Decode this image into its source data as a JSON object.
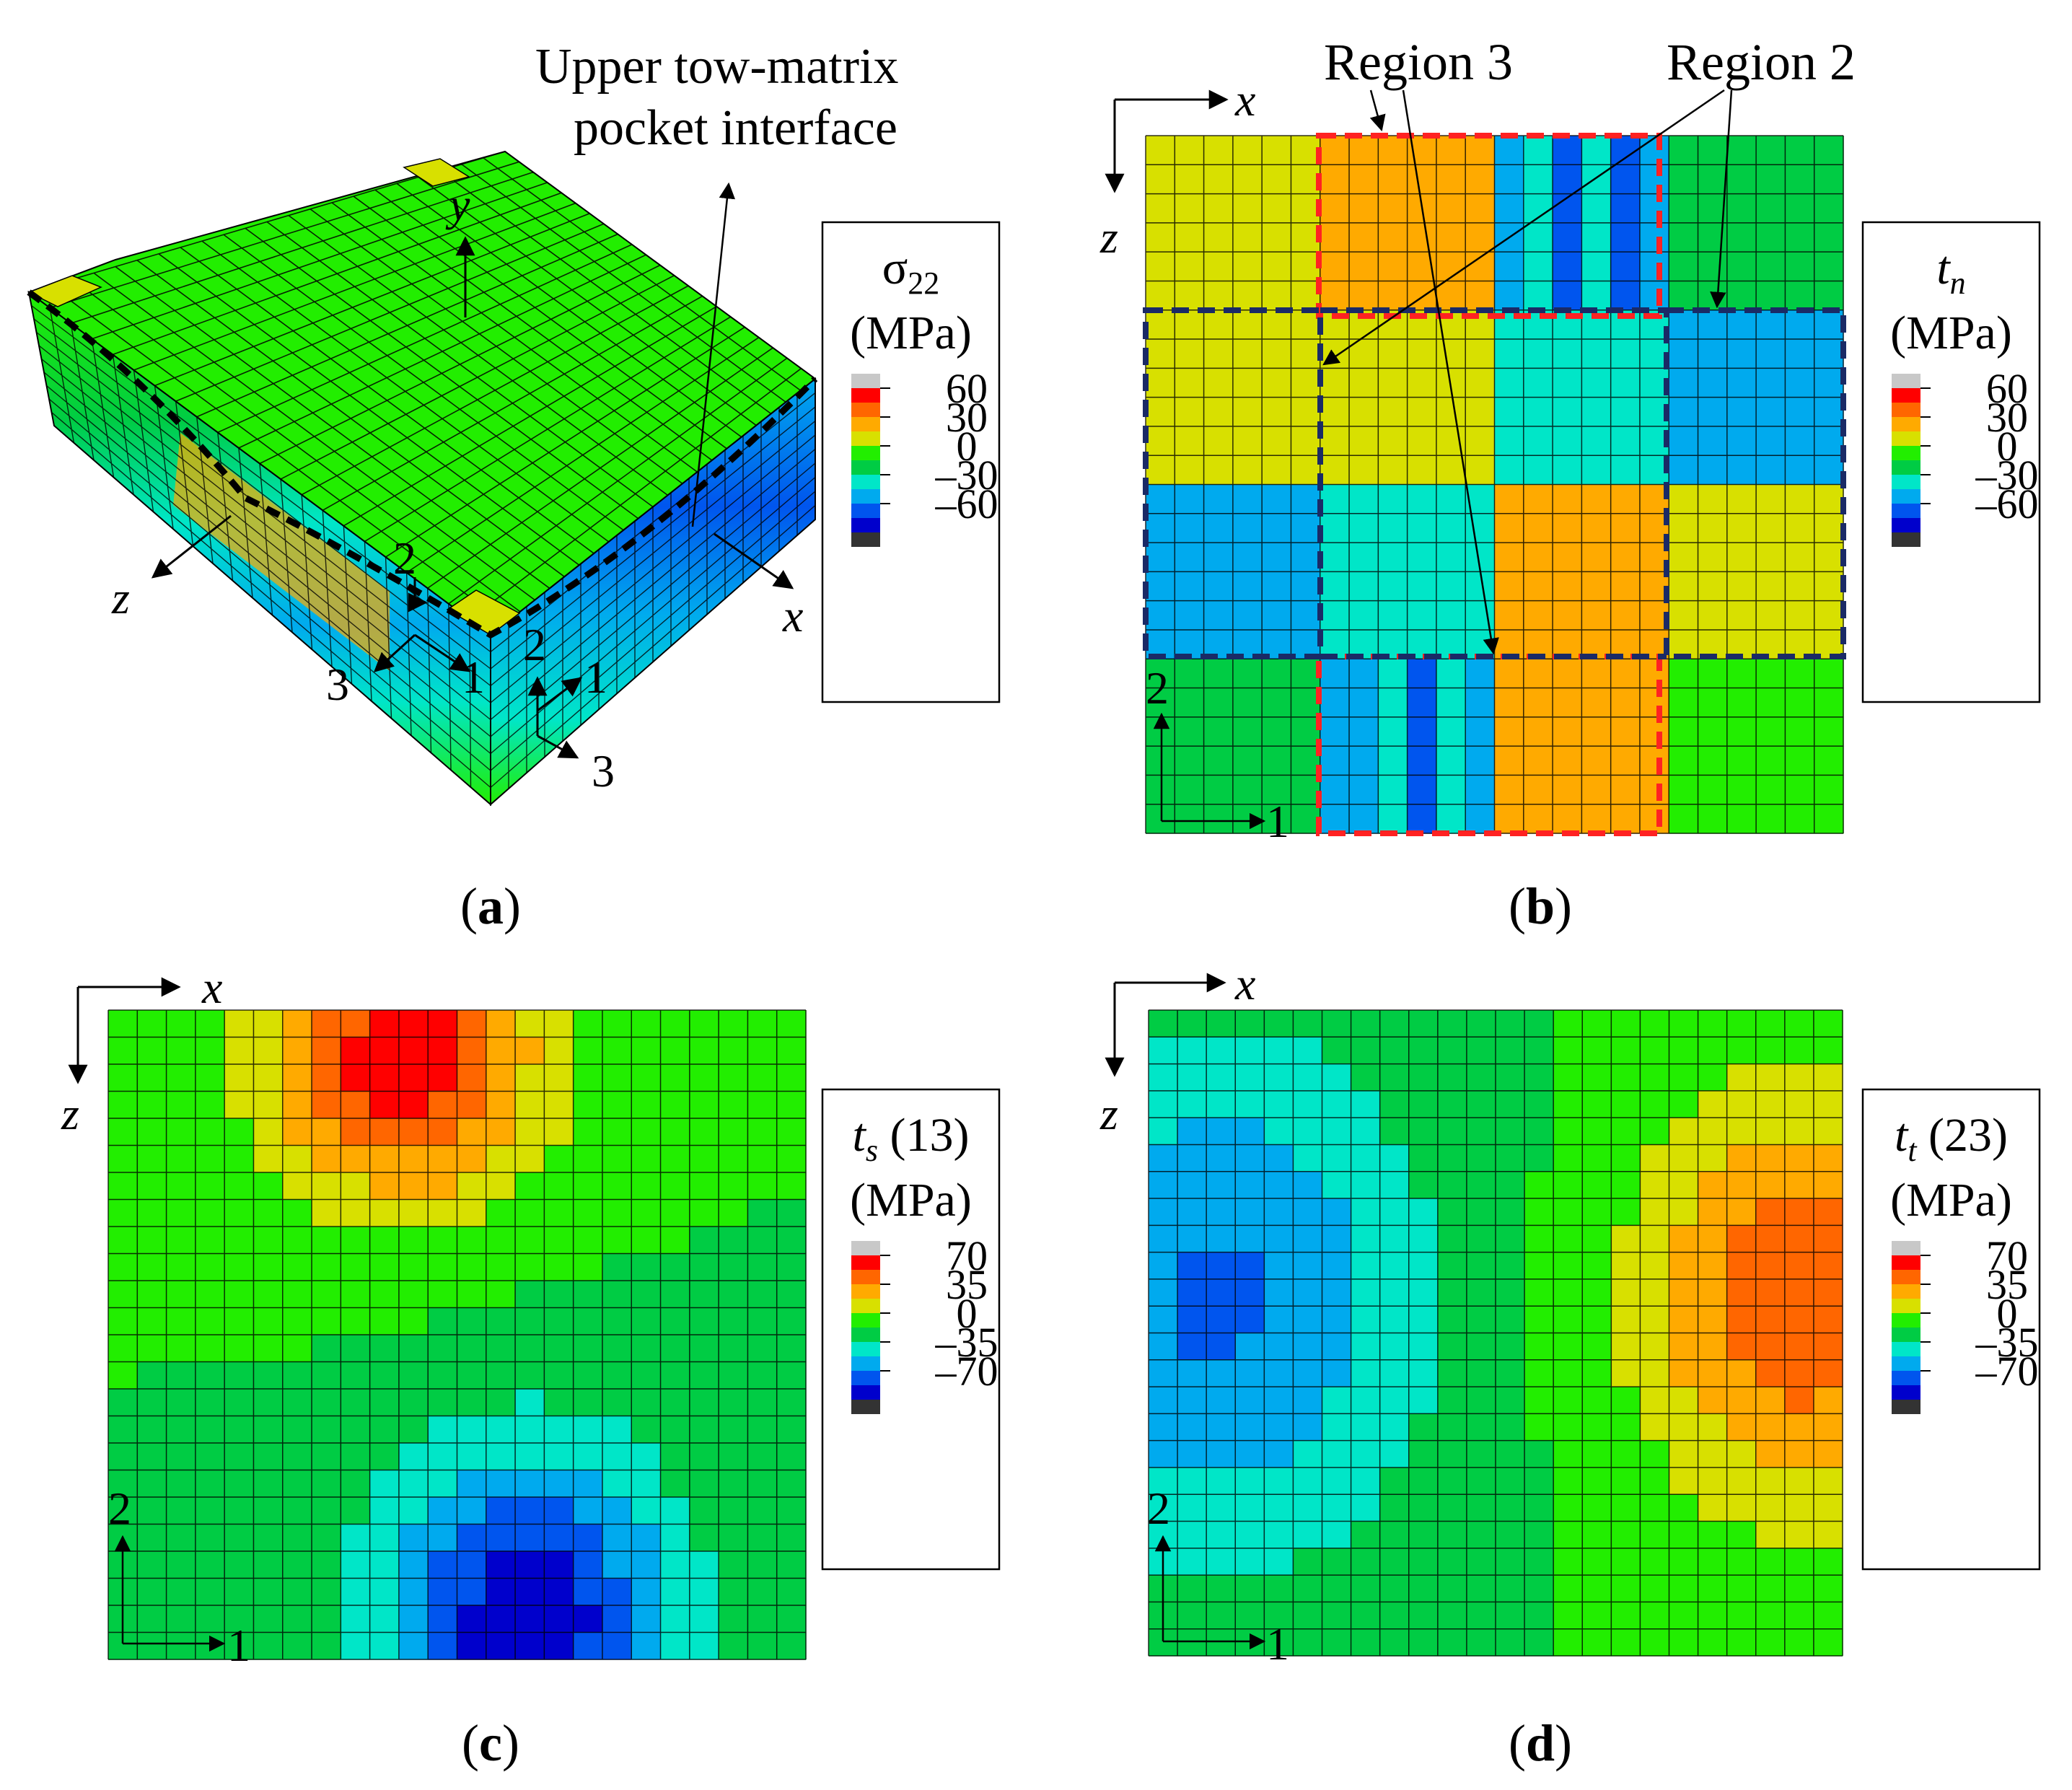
{
  "figure": {
    "panels": [
      {
        "id": "a",
        "caption_label": "a",
        "legend": {
          "symbol": "σ",
          "subscript": "22",
          "suffix": "",
          "unit": "(MPa)",
          "ticks": [
            "60",
            "30",
            "0",
            "–30",
            "–60"
          ]
        },
        "annotation": {
          "line1": "Upper tow-matrix",
          "line2": "pocket interface"
        },
        "axes": {
          "global": [
            "x",
            "y",
            "z"
          ],
          "local_left": [
            "2",
            "3",
            "1"
          ],
          "local_right": [
            "2",
            "1",
            "3"
          ]
        }
      },
      {
        "id": "b",
        "caption_label": "b",
        "legend": {
          "symbol": "t",
          "subscript": "n",
          "suffix": "",
          "unit": "(MPa)",
          "ticks": [
            "60",
            "30",
            "0",
            "–30",
            "–60"
          ]
        },
        "regions": [
          "Region 3",
          "Region 2"
        ],
        "axes": {
          "x": "x",
          "z": "z",
          "local": [
            "2",
            "1"
          ]
        }
      },
      {
        "id": "c",
        "caption_label": "c",
        "legend": {
          "symbol": "t",
          "subscript": "s",
          "suffix": " (13)",
          "unit": "(MPa)",
          "ticks": [
            "70",
            "35",
            "0",
            "–35",
            "–70"
          ]
        },
        "axes": {
          "x": "x",
          "z": "z",
          "local": [
            "2",
            "1"
          ]
        }
      },
      {
        "id": "d",
        "caption_label": "d",
        "legend": {
          "symbol": "t",
          "subscript": "t",
          "suffix": " (23)",
          "unit": "(MPa)",
          "ticks": [
            "70",
            "35",
            "0",
            "–35",
            "–70"
          ]
        },
        "axes": {
          "x": "x",
          "z": "z",
          "local": [
            "2",
            "1"
          ]
        }
      }
    ],
    "colormap": [
      "#c8c8c8",
      "#ff0000",
      "#ff6600",
      "#ffaa00",
      "#d8e000",
      "#22ee00",
      "#00cc44",
      "#00e6c8",
      "#00aaee",
      "#0055ee",
      "#0000cc",
      "#333333"
    ]
  }
}
